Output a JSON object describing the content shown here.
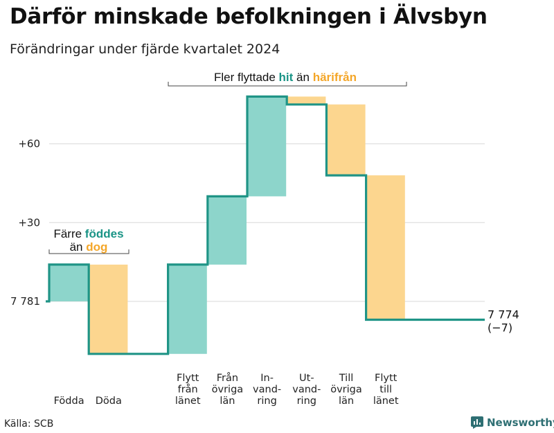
{
  "title": "Därför minskade befolkningen i Älvsbyn",
  "subtitle": "Förändringar under fjärde kvartalet 2024",
  "source": "Källa: SCB",
  "brand": "Newsworthy",
  "colors": {
    "increase": "#8dd5cb",
    "decrease": "#fcd68f",
    "line": "#1f9486",
    "text_increase": "#1a9486",
    "text_decrease": "#f4a628"
  },
  "annotations": {
    "left": {
      "line1": "Färre",
      "highlight1": "föddes",
      "line2_pre": "än",
      "highlight2": "dog"
    },
    "top": {
      "pre": "Fler flyttade",
      "highlight1": "hit",
      "mid": "än",
      "highlight2": "härifrån"
    }
  },
  "end_label": {
    "value": "7 774",
    "change": "(−7)"
  },
  "chart_data": {
    "type": "waterfall",
    "start_value": 7781,
    "start_label": "7 781",
    "end_value": 7774,
    "y_ticks": [
      {
        "label": "+60",
        "value": 60
      },
      {
        "label": "+30",
        "value": 30
      }
    ],
    "steps": [
      {
        "category": "Födda",
        "lines": [
          "Födda"
        ],
        "change": 14
      },
      {
        "category": "Döda",
        "lines": [
          "Döda"
        ],
        "change": -34
      },
      {
        "category": "",
        "lines": [],
        "change": 0
      },
      {
        "category": "Flytt från länet",
        "lines": [
          "Flytt",
          "från",
          "länet"
        ],
        "change": 34
      },
      {
        "category": "Från övriga län",
        "lines": [
          "Från",
          "övriga",
          "län"
        ],
        "change": 26
      },
      {
        "category": "Invandring",
        "lines": [
          "In-",
          "vand-",
          "ring"
        ],
        "change": 38
      },
      {
        "category": "Utvandring",
        "lines": [
          "Ut-",
          "vand-",
          "ring"
        ],
        "change": -3
      },
      {
        "category": "Till övriga län",
        "lines": [
          "Till",
          "övriga",
          "län"
        ],
        "change": -27
      },
      {
        "category": "Flytt till länet",
        "lines": [
          "Flytt",
          "till",
          "länet"
        ],
        "change": -55
      }
    ]
  }
}
